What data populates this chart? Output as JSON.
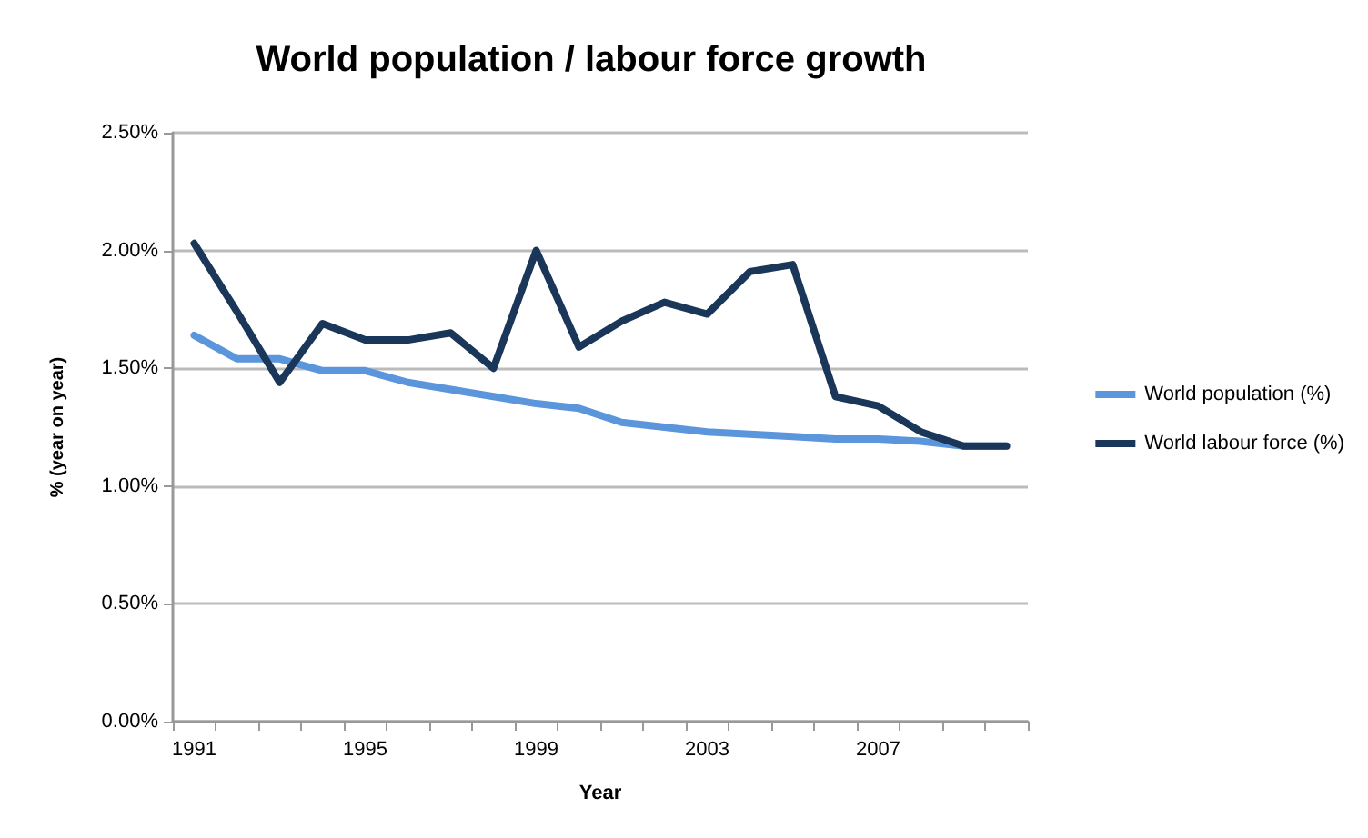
{
  "chart_data": {
    "type": "line",
    "title": "World population / labour force growth",
    "xlabel": "Year",
    "ylabel": "% (year on year)",
    "categories": [
      "1991",
      null,
      null,
      null,
      "1995",
      null,
      null,
      null,
      "1999",
      null,
      null,
      null,
      "2003",
      null,
      null,
      null,
      "2007",
      null,
      null,
      null
    ],
    "series": [
      {
        "name": "World population (%)",
        "color": "#5b95dc",
        "values": [
          1.64,
          1.54,
          1.54,
          1.49,
          1.49,
          1.44,
          1.41,
          1.38,
          1.35,
          1.33,
          1.27,
          1.25,
          1.23,
          1.22,
          1.21,
          1.2,
          1.2,
          1.19,
          1.17,
          1.17
        ]
      },
      {
        "name": "World labour force (%)",
        "color": "#1a3659",
        "values": [
          2.03,
          1.74,
          1.44,
          1.69,
          1.62,
          1.62,
          1.65,
          1.5,
          2.0,
          1.59,
          1.7,
          1.78,
          1.73,
          1.91,
          1.94,
          1.38,
          1.34,
          1.23,
          1.17,
          1.17
        ]
      }
    ],
    "ylim": [
      0,
      2.5
    ],
    "yticks": [
      {
        "value": 0,
        "label": "0.00%"
      },
      {
        "value": 0.5,
        "label": "0.50%"
      },
      {
        "value": 1,
        "label": "1.00%"
      },
      {
        "value": 1.5,
        "label": "1.50%"
      },
      {
        "value": 2,
        "label": "2.00%"
      },
      {
        "value": 2.5,
        "label": "2.50%"
      }
    ],
    "grid": "y",
    "legend": "right",
    "marker": "none",
    "line_style": "solid"
  }
}
